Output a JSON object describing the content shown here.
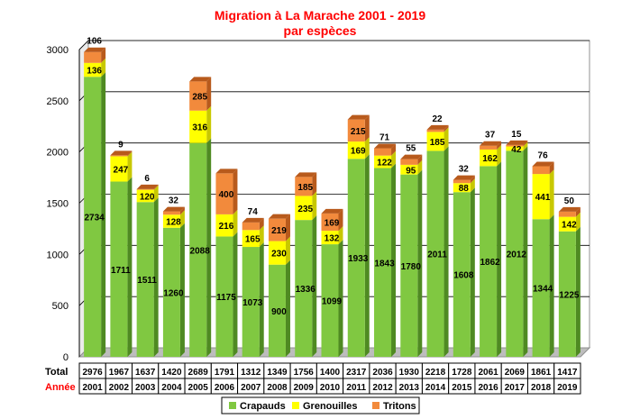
{
  "title": "Migration à La Marache 2001 - 2019",
  "subtitle": "par espèces",
  "colors": {
    "title": "#ff0000",
    "crapauds": "#80c841",
    "grenouilles": "#ffff00",
    "tritons": "#f28a3c",
    "annee_label": "#ff0000"
  },
  "chart_data": {
    "type": "bar",
    "stacked": true,
    "title": "Migration à La Marache 2001 - 2019",
    "subtitle": "par espèces",
    "categories": [
      "2001",
      "2002",
      "2003",
      "2004",
      "2005",
      "2006",
      "2007",
      "2008",
      "2009",
      "2010",
      "2011",
      "2012",
      "2013",
      "2014",
      "2015",
      "2016",
      "2017",
      "2018",
      "2019"
    ],
    "series": [
      {
        "name": "Crapauds",
        "values": [
          2734,
          1711,
          1511,
          1260,
          2088,
          1175,
          1073,
          900,
          1336,
          1099,
          1933,
          1843,
          1780,
          2011,
          1608,
          1862,
          2012,
          1344,
          1225
        ]
      },
      {
        "name": "Grenouilles",
        "values": [
          136,
          247,
          120,
          128,
          316,
          216,
          165,
          230,
          235,
          132,
          169,
          122,
          95,
          185,
          88,
          162,
          42,
          441,
          142
        ]
      },
      {
        "name": "Tritons",
        "values": [
          106,
          9,
          6,
          32,
          285,
          400,
          74,
          219,
          185,
          169,
          215,
          71,
          55,
          22,
          32,
          37,
          15,
          76,
          50
        ]
      }
    ],
    "ylim": [
      0,
      3000
    ],
    "yticks": [
      0,
      500,
      1000,
      1500,
      2000,
      2500,
      3000
    ],
    "grid": true,
    "legend": "bottom",
    "table": {
      "total_label": "Total",
      "year_label": "Année",
      "totals": [
        "2976",
        "1967",
        "1637",
        "1420",
        "2689",
        "1791",
        "1312",
        "1349",
        "1756",
        "1400",
        "2317",
        "2036",
        "1930",
        "2218",
        "1728",
        "2061",
        "2069",
        "1861",
        "1417"
      ]
    }
  }
}
